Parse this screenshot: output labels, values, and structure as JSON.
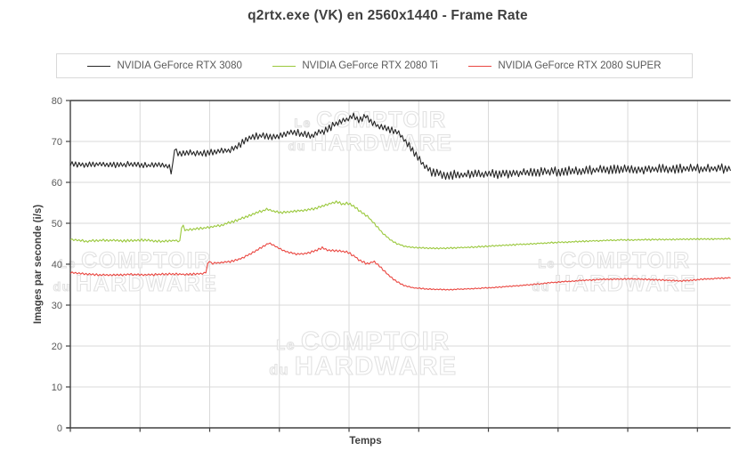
{
  "title": "q2rtx.exe (VK) en 2560x1440 - Frame Rate",
  "watermark": {
    "prefix1": "Le",
    "word1": "COMPTOIR",
    "prefix2": "du",
    "word2": "HARDWARE"
  },
  "colors": {
    "axis": "#404040",
    "grid": "#d9d9d9",
    "tick_text": "#595959",
    "title_text": "#3f3f3f",
    "watermark": "#e2e2e2",
    "legend_border": "#d9d9d9"
  },
  "chart_data": {
    "type": "line",
    "title": "q2rtx.exe (VK) en 2560x1440 - Frame Rate",
    "xlabel": "Temps",
    "ylabel": "Images par seconde (i/s)",
    "ylim": [
      0,
      80
    ],
    "y_ticks": [
      0,
      10,
      20,
      30,
      40,
      50,
      60,
      70,
      80
    ],
    "x_axis_ticks_count": 10,
    "x_unit": "temps (non gradué)",
    "grid": true,
    "legend_position": "top",
    "series": [
      {
        "name": "NVIDIA GeForce RTX 3080",
        "color": "#262626",
        "unit": "i/s",
        "noise_seed": 11,
        "noise_envelope": [
          [
            0,
            0.75
          ],
          [
            0.15,
            0.75
          ],
          [
            0.16,
            0.85
          ],
          [
            0.4,
            0.9
          ],
          [
            0.5,
            0.9
          ],
          [
            0.56,
            1.15
          ],
          [
            1,
            1.25
          ]
        ],
        "keypoints": [
          [
            0.0,
            64.6
          ],
          [
            0.02,
            64.2
          ],
          [
            0.045,
            64.5
          ],
          [
            0.07,
            64.2
          ],
          [
            0.095,
            64.5
          ],
          [
            0.12,
            64.1
          ],
          [
            0.14,
            64.4
          ],
          [
            0.15,
            63.8
          ],
          [
            0.154,
            62.3
          ],
          [
            0.158,
            68.6
          ],
          [
            0.163,
            66.8
          ],
          [
            0.18,
            67.2
          ],
          [
            0.2,
            67.0
          ],
          [
            0.22,
            67.4
          ],
          [
            0.24,
            67.8
          ],
          [
            0.255,
            69.0
          ],
          [
            0.268,
            70.6
          ],
          [
            0.28,
            71.2
          ],
          [
            0.295,
            71.5
          ],
          [
            0.31,
            71.0
          ],
          [
            0.325,
            71.9
          ],
          [
            0.34,
            72.3
          ],
          [
            0.352,
            71.8
          ],
          [
            0.365,
            71.4
          ],
          [
            0.378,
            72.2
          ],
          [
            0.392,
            73.2
          ],
          [
            0.405,
            74.6
          ],
          [
            0.418,
            75.3
          ],
          [
            0.428,
            76.3
          ],
          [
            0.437,
            75.2
          ],
          [
            0.447,
            76.4
          ],
          [
            0.457,
            74.6
          ],
          [
            0.468,
            73.5
          ],
          [
            0.48,
            73.0
          ],
          [
            0.492,
            72.6
          ],
          [
            0.502,
            71.2
          ],
          [
            0.512,
            69.3
          ],
          [
            0.525,
            66.3
          ],
          [
            0.538,
            63.6
          ],
          [
            0.55,
            62.3
          ],
          [
            0.565,
            61.9
          ],
          [
            0.59,
            61.8
          ],
          [
            0.63,
            62.0
          ],
          [
            0.68,
            62.3
          ],
          [
            0.73,
            62.6
          ],
          [
            0.78,
            62.9
          ],
          [
            0.83,
            63.1
          ],
          [
            0.88,
            63.2
          ],
          [
            0.93,
            63.3
          ],
          [
            1.0,
            63.4
          ]
        ]
      },
      {
        "name": "NVIDIA GeForce RTX 2080 Ti",
        "color": "#9ac83c",
        "unit": "i/s",
        "noise_seed": 23,
        "noise_envelope": [
          [
            0,
            0.3
          ],
          [
            0.43,
            0.35
          ],
          [
            0.5,
            0.2
          ],
          [
            1,
            0.2
          ]
        ],
        "keypoints": [
          [
            0.0,
            46.1
          ],
          [
            0.025,
            45.6
          ],
          [
            0.05,
            45.9
          ],
          [
            0.08,
            45.7
          ],
          [
            0.11,
            45.9
          ],
          [
            0.135,
            45.6
          ],
          [
            0.16,
            45.8
          ],
          [
            0.166,
            45.6
          ],
          [
            0.169,
            49.9
          ],
          [
            0.174,
            48.3
          ],
          [
            0.19,
            48.6
          ],
          [
            0.21,
            49.0
          ],
          [
            0.23,
            49.6
          ],
          [
            0.25,
            50.6
          ],
          [
            0.27,
            51.8
          ],
          [
            0.285,
            52.7
          ],
          [
            0.298,
            53.4
          ],
          [
            0.31,
            52.8
          ],
          [
            0.322,
            52.6
          ],
          [
            0.335,
            52.9
          ],
          [
            0.35,
            53.1
          ],
          [
            0.365,
            53.4
          ],
          [
            0.38,
            54.1
          ],
          [
            0.395,
            54.9
          ],
          [
            0.403,
            55.3
          ],
          [
            0.412,
            54.7
          ],
          [
            0.42,
            54.9
          ],
          [
            0.43,
            54.0
          ],
          [
            0.442,
            52.6
          ],
          [
            0.452,
            51.4
          ],
          [
            0.462,
            49.6
          ],
          [
            0.472,
            47.8
          ],
          [
            0.483,
            46.2
          ],
          [
            0.495,
            45.0
          ],
          [
            0.508,
            44.3
          ],
          [
            0.525,
            44.0
          ],
          [
            0.56,
            43.9
          ],
          [
            0.6,
            44.1
          ],
          [
            0.645,
            44.5
          ],
          [
            0.69,
            44.9
          ],
          [
            0.735,
            45.3
          ],
          [
            0.78,
            45.6
          ],
          [
            0.83,
            45.9
          ],
          [
            0.88,
            46.0
          ],
          [
            0.94,
            46.1
          ],
          [
            1.0,
            46.2
          ]
        ]
      },
      {
        "name": "NVIDIA GeForce RTX 2080 SUPER",
        "color": "#ea4741",
        "unit": "i/s",
        "noise_seed": 37,
        "noise_envelope": [
          [
            0,
            0.25
          ],
          [
            0.45,
            0.3
          ],
          [
            0.52,
            0.15
          ],
          [
            1,
            0.18
          ]
        ],
        "keypoints": [
          [
            0.0,
            37.9
          ],
          [
            0.03,
            37.5
          ],
          [
            0.06,
            37.3
          ],
          [
            0.09,
            37.5
          ],
          [
            0.12,
            37.4
          ],
          [
            0.15,
            37.6
          ],
          [
            0.18,
            37.5
          ],
          [
            0.202,
            37.7
          ],
          [
            0.206,
            38.1
          ],
          [
            0.209,
            41.1
          ],
          [
            0.214,
            40.2
          ],
          [
            0.23,
            40.4
          ],
          [
            0.248,
            40.8
          ],
          [
            0.262,
            41.6
          ],
          [
            0.278,
            43.0
          ],
          [
            0.292,
            44.3
          ],
          [
            0.3,
            45.1
          ],
          [
            0.308,
            44.6
          ],
          [
            0.318,
            43.7
          ],
          [
            0.33,
            42.9
          ],
          [
            0.342,
            42.5
          ],
          [
            0.355,
            42.5
          ],
          [
            0.37,
            43.2
          ],
          [
            0.381,
            44.0
          ],
          [
            0.39,
            43.4
          ],
          [
            0.405,
            43.3
          ],
          [
            0.42,
            42.9
          ],
          [
            0.43,
            42.0
          ],
          [
            0.44,
            40.7
          ],
          [
            0.45,
            40.1
          ],
          [
            0.46,
            40.7
          ],
          [
            0.468,
            39.6
          ],
          [
            0.48,
            37.6
          ],
          [
            0.492,
            36.0
          ],
          [
            0.505,
            34.8
          ],
          [
            0.52,
            34.2
          ],
          [
            0.545,
            33.9
          ],
          [
            0.575,
            33.8
          ],
          [
            0.61,
            34.0
          ],
          [
            0.65,
            34.4
          ],
          [
            0.69,
            34.9
          ],
          [
            0.73,
            35.5
          ],
          [
            0.77,
            36.0
          ],
          [
            0.81,
            36.3
          ],
          [
            0.85,
            36.4
          ],
          [
            0.89,
            36.2
          ],
          [
            0.925,
            35.9
          ],
          [
            0.955,
            36.3
          ],
          [
            1.0,
            36.7
          ]
        ]
      }
    ]
  }
}
